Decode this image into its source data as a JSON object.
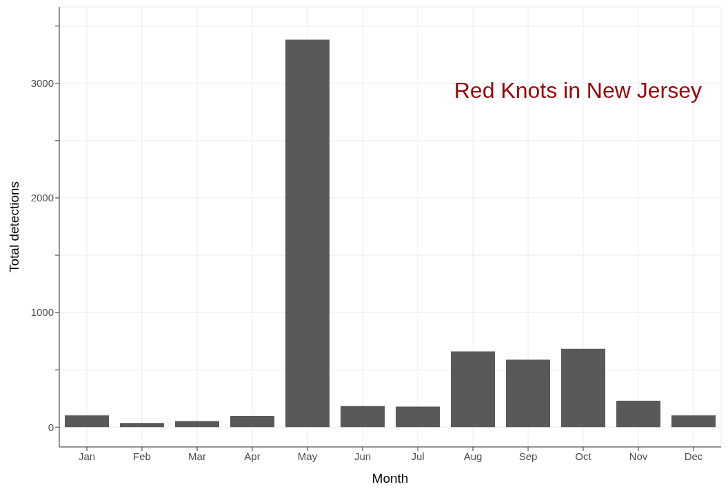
{
  "chart_data": {
    "type": "bar",
    "title": "Red Knots in New Jersey",
    "xlabel": "Month",
    "ylabel": "Total detections",
    "categories": [
      "Jan",
      "Feb",
      "Mar",
      "Apr",
      "May",
      "Jun",
      "Jul",
      "Aug",
      "Sep",
      "Oct",
      "Nov",
      "Dec"
    ],
    "values": [
      102,
      36,
      52,
      98,
      3381,
      183,
      179,
      661,
      589,
      683,
      231,
      102
    ],
    "color": "#595959",
    "ylim": [
      -173,
      3667
    ],
    "yticks": [
      0,
      {
        "value": 500,
        "label": null
      },
      1000,
      {
        "value": 1500,
        "label": null
      },
      2000,
      {
        "value": 2500,
        "label": null
      },
      3000,
      {
        "value": 3500,
        "label": null
      }
    ],
    "grid": true
  }
}
